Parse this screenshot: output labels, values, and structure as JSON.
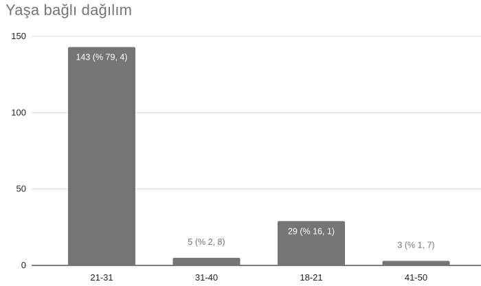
{
  "chart_data": {
    "type": "bar",
    "title": "Yaşa bağlı dağılım",
    "categories": [
      "21-31",
      "31-40",
      "18-21",
      "41-50"
    ],
    "values": [
      143,
      5,
      29,
      3
    ],
    "data_labels": [
      "143 (% 79, 4)",
      "5 (% 2, 8)",
      "29 (% 16, 1)",
      "3 (% 1, 7)"
    ],
    "ylim": [
      0,
      150
    ],
    "yticks": [
      "0",
      "50",
      "100",
      "150"
    ],
    "xlabel": "",
    "ylabel": "",
    "grid": true,
    "colors": {
      "bar": "#757575",
      "grid": "#d9d9d9",
      "axis": "#333333"
    }
  }
}
